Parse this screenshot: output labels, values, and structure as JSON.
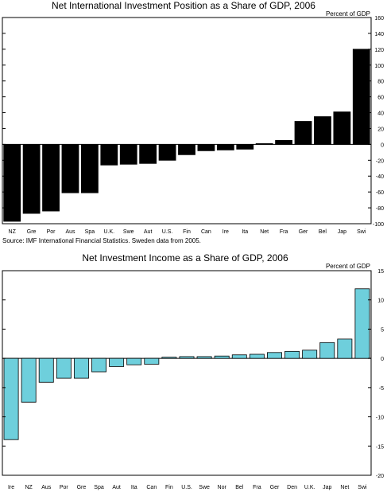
{
  "chart_data": [
    {
      "type": "bar",
      "title": "Net International Investment Position as a Share of GDP, 2006",
      "ylabel": "Percent of GDP",
      "ylim": [
        -100,
        160
      ],
      "yticks": [
        -100,
        -80,
        -60,
        -40,
        -20,
        0,
        20,
        40,
        60,
        80,
        100,
        120,
        140,
        160
      ],
      "categories": [
        "NZ",
        "Gre",
        "Por",
        "Aus",
        "Spa",
        "U.K.",
        "Swe",
        "Aut",
        "U.S.",
        "Fin",
        "Can",
        "Ire",
        "Ita",
        "Net",
        "Fra",
        "Ger",
        "Bel",
        "Jap",
        "Swi"
      ],
      "values": [
        -97,
        -87,
        -84,
        -61,
        -61,
        -26,
        -25,
        -24,
        -20,
        -13,
        -8,
        -7,
        -6,
        1,
        5,
        29,
        35,
        41,
        120
      ],
      "bar_color": "#000000",
      "grid": false,
      "legend": "none",
      "source": "Source:  IMF International Financial Statistics. Sweden data from 2005."
    },
    {
      "type": "bar",
      "title": "Net Investment Income as a Share of GDP, 2006",
      "ylabel": "Percent of GDP",
      "ylim": [
        -20,
        15
      ],
      "yticks": [
        -20,
        -15,
        -10,
        -5,
        0,
        5,
        10,
        15
      ],
      "categories": [
        "Ire",
        "NZ",
        "Aus",
        "Por",
        "Gre",
        "Spa",
        "Aut",
        "Ita",
        "Can",
        "Fin",
        "U.S.",
        "Swe",
        "Nor",
        "Bel",
        "Fra",
        "Ger",
        "Den",
        "U.K.",
        "Jap",
        "Net",
        "Swi"
      ],
      "values": [
        -13.9,
        -7.5,
        -4.1,
        -3.4,
        -3.4,
        -2.3,
        -1.4,
        -1.1,
        -1.0,
        0.2,
        0.3,
        0.3,
        0.4,
        0.6,
        0.7,
        1.0,
        1.2,
        1.4,
        2.7,
        3.3,
        11.9
      ],
      "bar_color": "#6ecfdc",
      "grid": false,
      "legend": "none"
    }
  ]
}
